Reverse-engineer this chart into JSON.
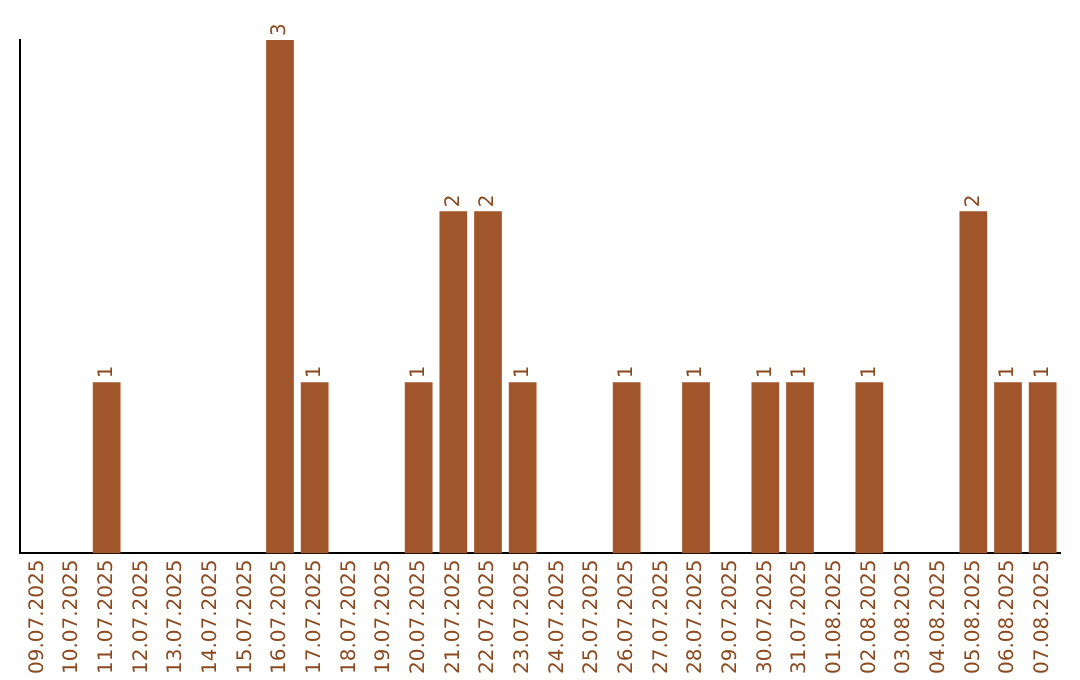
{
  "chart_data": {
    "type": "bar",
    "categories": [
      "09.07.2025",
      "10.07.2025",
      "11.07.2025",
      "12.07.2025",
      "13.07.2025",
      "14.07.2025",
      "15.07.2025",
      "16.07.2025",
      "17.07.2025",
      "18.07.2025",
      "19.07.2025",
      "20.07.2025",
      "21.07.2025",
      "22.07.2025",
      "23.07.2025",
      "24.07.2025",
      "25.07.2025",
      "26.07.2025",
      "27.07.2025",
      "28.07.2025",
      "29.07.2025",
      "30.07.2025",
      "31.07.2025",
      "01.08.2025",
      "02.08.2025",
      "03.08.2025",
      "04.08.2025",
      "05.08.2025",
      "06.08.2025",
      "07.08.2025"
    ],
    "values": [
      0,
      0,
      1,
      0,
      0,
      0,
      0,
      3,
      1,
      0,
      0,
      1,
      2,
      2,
      1,
      0,
      0,
      1,
      0,
      1,
      0,
      1,
      1,
      0,
      1,
      0,
      0,
      2,
      1,
      1
    ],
    "value_labels": [
      null,
      null,
      "1",
      null,
      null,
      null,
      null,
      "3",
      "1",
      null,
      null,
      "1",
      "2",
      "2",
      "1",
      null,
      null,
      "1",
      null,
      "1",
      null,
      "1",
      "1",
      null,
      "1",
      null,
      null,
      "2",
      "1",
      "1"
    ],
    "color": "#a0562a",
    "ylim": [
      0,
      3
    ],
    "grid": false,
    "tick_labels": "x"
  }
}
